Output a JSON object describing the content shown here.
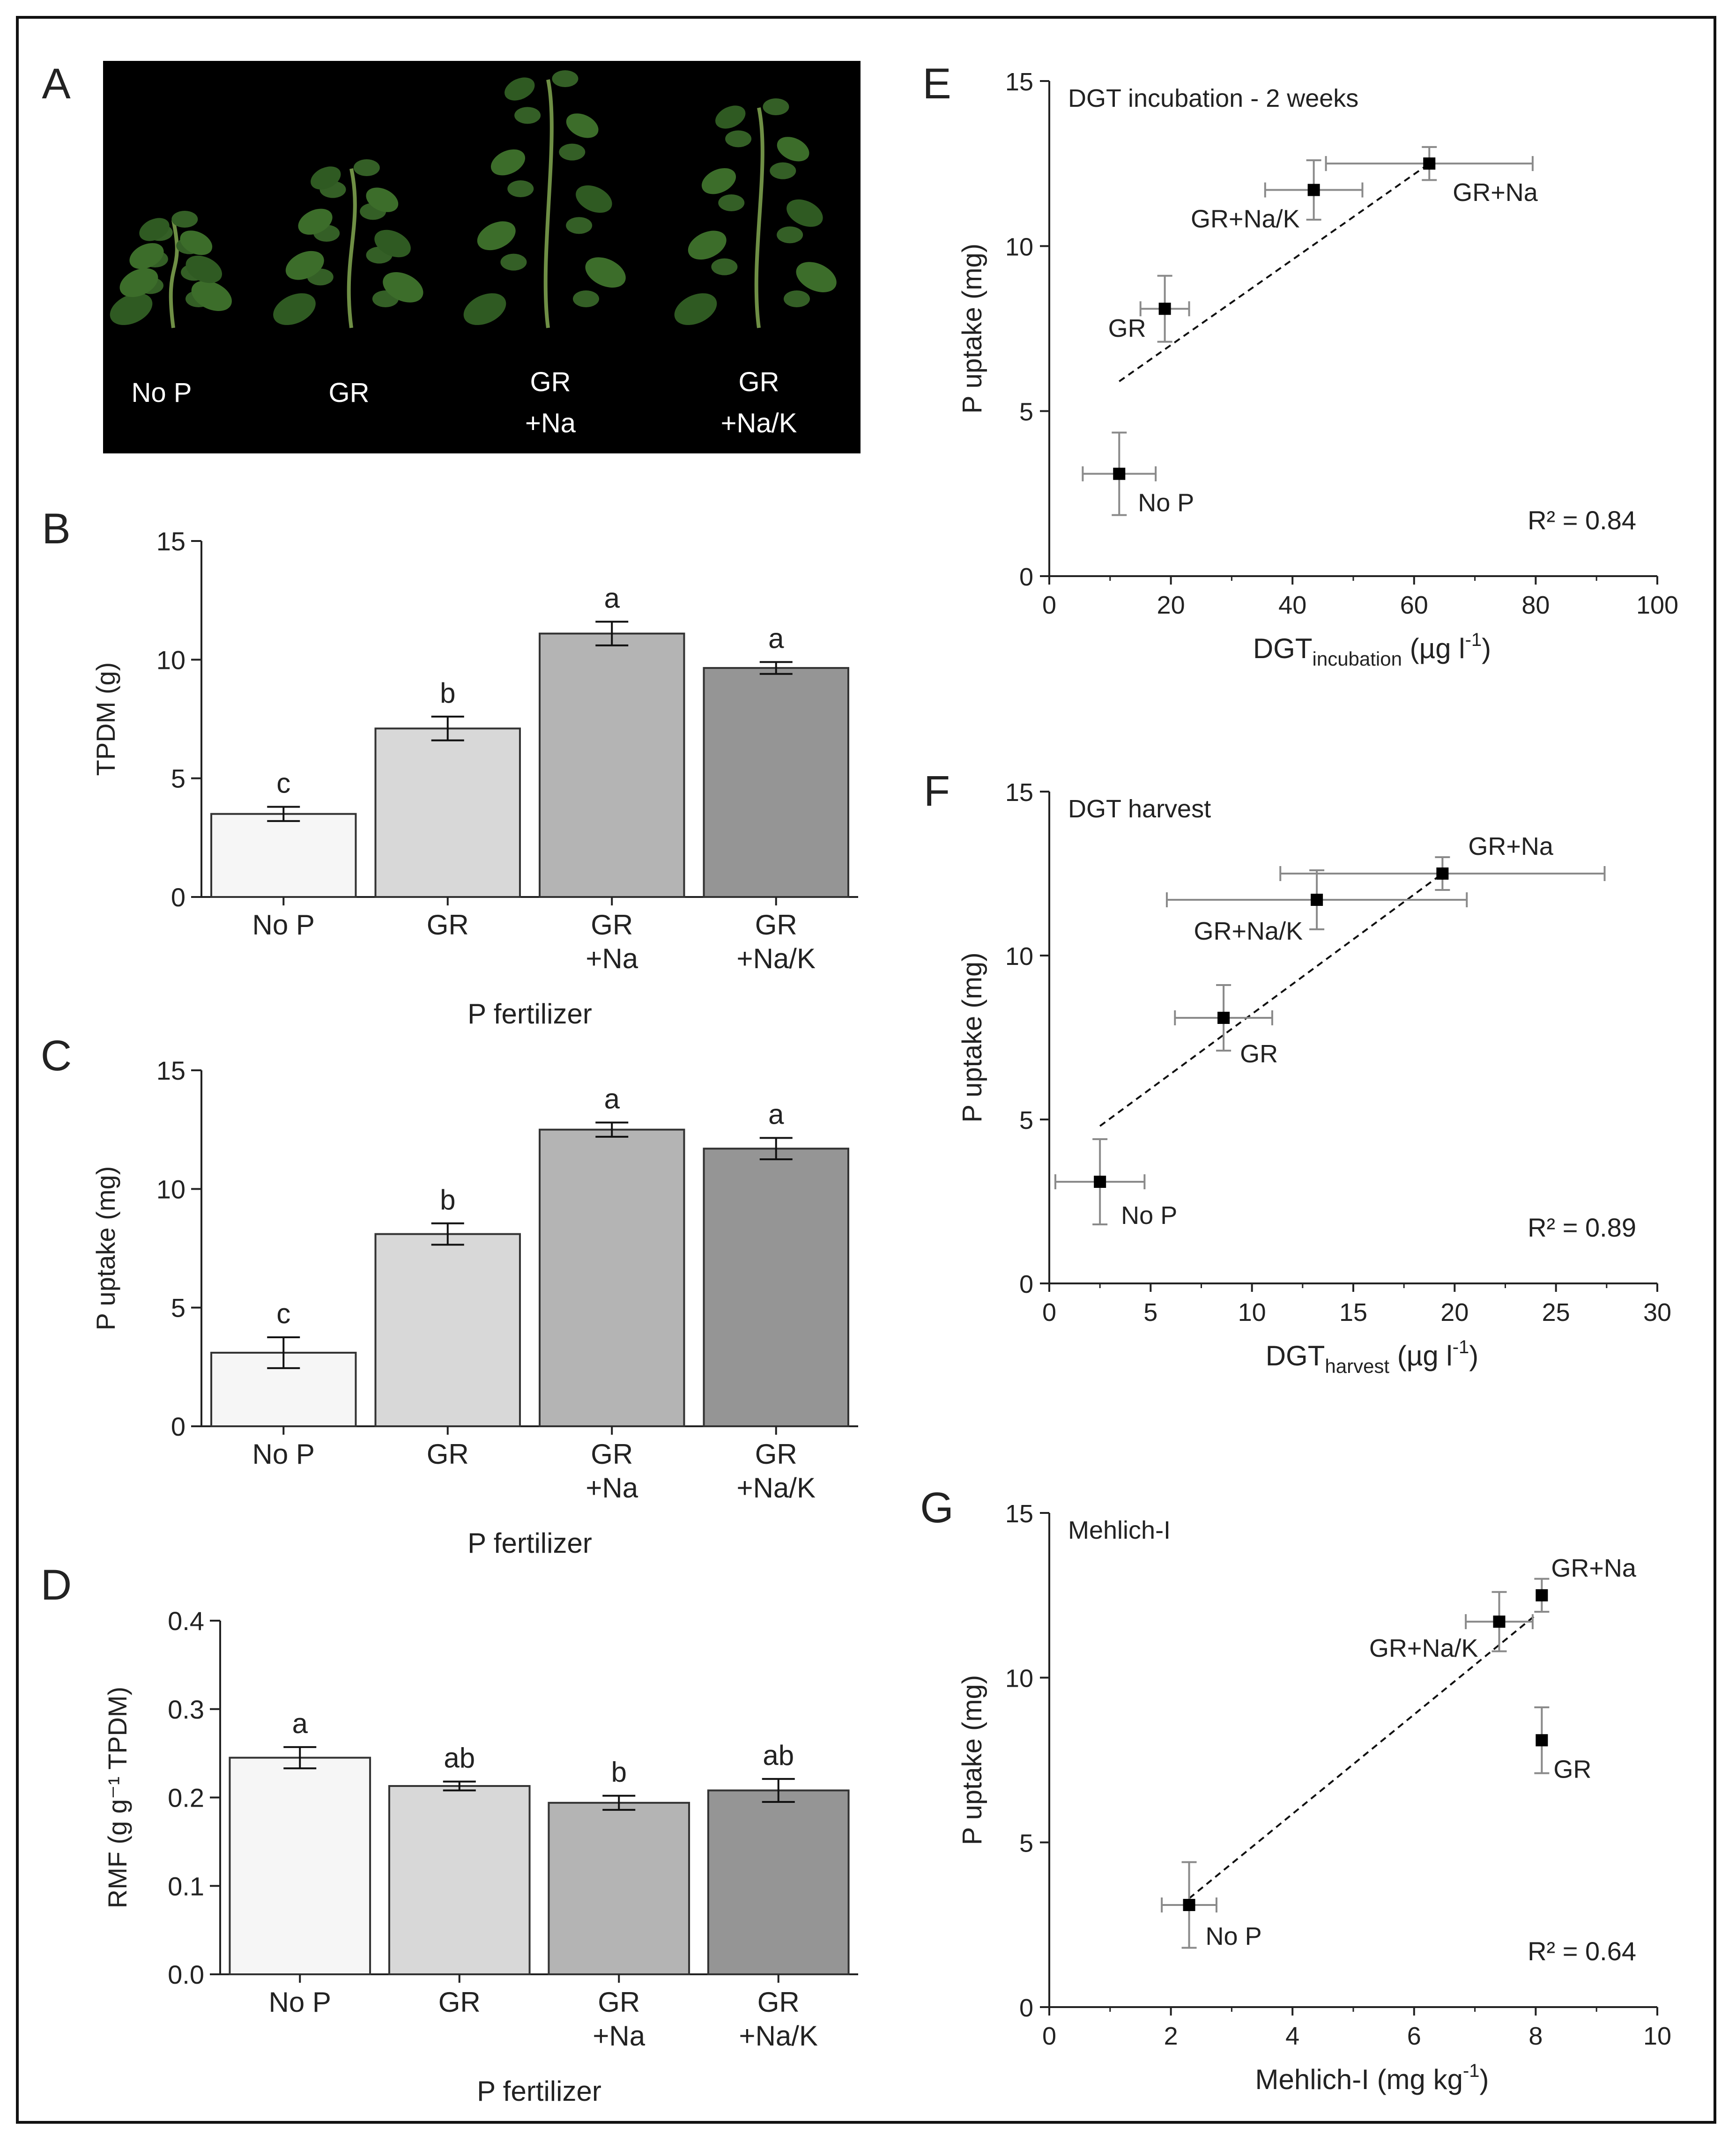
{
  "figure": {
    "panel_letters": [
      "A",
      "B",
      "C",
      "D",
      "E",
      "F",
      "G"
    ]
  },
  "photo": {
    "labels": [
      [
        "No P"
      ],
      [
        "GR"
      ],
      [
        "GR",
        "+Na"
      ],
      [
        "GR",
        "+Na/K"
      ]
    ]
  },
  "colors": {
    "bar_fills": [
      "#f6f6f6",
      "#d8d8d8",
      "#b4b4b4",
      "#959595"
    ],
    "ink": "#222222",
    "errorbar_scatter": "#8a8a8a"
  },
  "chart_data": [
    {
      "panel": "B",
      "type": "bar",
      "categories": [
        [
          "No P"
        ],
        [
          "GR"
        ],
        [
          "GR",
          "+Na"
        ],
        [
          "GR",
          "+Na/K"
        ]
      ],
      "values": [
        3.5,
        7.1,
        11.1,
        9.65
      ],
      "errors": [
        0.3,
        0.5,
        0.5,
        0.25
      ],
      "letters": [
        "c",
        "b",
        "a",
        "a"
      ],
      "xlabel": "P fertilizer",
      "ylabel": "TPDM (g)",
      "ylim": [
        0,
        15
      ],
      "yticks": [
        "0",
        "5",
        "10",
        "15"
      ],
      "ytick_values": [
        0,
        5,
        10,
        15
      ]
    },
    {
      "panel": "C",
      "type": "bar",
      "categories": [
        [
          "No P"
        ],
        [
          "GR"
        ],
        [
          "GR",
          "+Na"
        ],
        [
          "GR",
          "+Na/K"
        ]
      ],
      "values": [
        3.1,
        8.1,
        12.5,
        11.7
      ],
      "errors": [
        0.65,
        0.45,
        0.3,
        0.45
      ],
      "letters": [
        "c",
        "b",
        "a",
        "a"
      ],
      "xlabel": "P fertilizer",
      "ylabel": "P uptake (mg)",
      "ylim": [
        0,
        15
      ],
      "yticks": [
        "0",
        "5",
        "10",
        "15"
      ],
      "ytick_values": [
        0,
        5,
        10,
        15
      ]
    },
    {
      "panel": "D",
      "type": "bar",
      "categories": [
        [
          "No P"
        ],
        [
          "GR"
        ],
        [
          "GR",
          "+Na"
        ],
        [
          "GR",
          "+Na/K"
        ]
      ],
      "values": [
        0.245,
        0.213,
        0.194,
        0.208
      ],
      "errors": [
        0.012,
        0.005,
        0.008,
        0.013
      ],
      "letters": [
        "a",
        "ab",
        "b",
        "ab"
      ],
      "xlabel": "P fertilizer",
      "ylabel": "RMF (g g⁻¹ TPDM)",
      "ylim": [
        0,
        0.4
      ],
      "yticks": [
        "0.0",
        "0.1",
        "0.2",
        "0.3",
        "0.4"
      ],
      "ytick_values": [
        0,
        0.1,
        0.2,
        0.3,
        0.4
      ]
    },
    {
      "panel": "E",
      "type": "scatter",
      "title": "DGT incubation - 2 weeks",
      "xlabel_main": "DGT",
      "xlabel_sub": "incubation",
      "xlabel_unit": " (µg l",
      "xlabel_sup": "-1",
      "xlabel_end": ")",
      "ylabel": "P uptake (mg)",
      "xlim": [
        0,
        100
      ],
      "ylim": [
        0,
        15
      ],
      "xticks": [
        "0",
        "20",
        "40",
        "60",
        "80",
        "100"
      ],
      "xtick_values": [
        0,
        20,
        40,
        60,
        80,
        100
      ],
      "yticks": [
        "0",
        "5",
        "10",
        "15"
      ],
      "ytick_values": [
        0,
        5,
        10,
        15
      ],
      "points": [
        {
          "label": "No P",
          "x": 11.5,
          "y": 3.1,
          "xerr": 6,
          "yerr": 1.25
        },
        {
          "label": "GR",
          "x": 19,
          "y": 8.1,
          "xerr": 4,
          "yerr": 1
        },
        {
          "label": "GR+Na/K",
          "x": 43.5,
          "y": 11.7,
          "xerr": 8,
          "yerr": 0.9
        },
        {
          "label": "GR+Na",
          "x": 62.5,
          "y": 12.5,
          "xerr": 17,
          "yerr": 0.5
        }
      ],
      "fit_line": {
        "x": [
          11.5,
          62.5
        ],
        "y": [
          5.9,
          12.5
        ]
      },
      "r2_label": "R² = 0.84"
    },
    {
      "panel": "F",
      "type": "scatter",
      "title": "DGT harvest",
      "xlabel_main": "DGT",
      "xlabel_sub": "harvest",
      "xlabel_unit": " (µg l",
      "xlabel_sup": "-1",
      "xlabel_end": ")",
      "ylabel": "P uptake (mg)",
      "xlim": [
        0,
        30
      ],
      "ylim": [
        0,
        15
      ],
      "xticks": [
        "0",
        "5",
        "10",
        "15",
        "20",
        "25",
        "30"
      ],
      "xtick_values": [
        0,
        5,
        10,
        15,
        20,
        25,
        30
      ],
      "yticks": [
        "0",
        "5",
        "10",
        "15"
      ],
      "ytick_values": [
        0,
        5,
        10,
        15
      ],
      "points": [
        {
          "label": "No P",
          "x": 2.5,
          "y": 3.1,
          "xerr": 2.2,
          "yerr": 1.3
        },
        {
          "label": "GR",
          "x": 8.6,
          "y": 8.1,
          "xerr": 2.4,
          "yerr": 1
        },
        {
          "label": "GR+Na/K",
          "x": 13.2,
          "y": 11.7,
          "xerr": 7.4,
          "yerr": 0.9
        },
        {
          "label": "GR+Na",
          "x": 19.4,
          "y": 12.5,
          "xerr": 8,
          "yerr": 0.5
        }
      ],
      "fit_line": {
        "x": [
          2.5,
          19.4
        ],
        "y": [
          4.8,
          12.5
        ]
      },
      "r2_label": "R² = 0.89"
    },
    {
      "panel": "G",
      "type": "scatter",
      "title": "Mehlich-I",
      "xlabel_main": "Mehlich-I (mg kg",
      "xlabel_sub": "",
      "xlabel_unit": "",
      "xlabel_sup": "-1",
      "xlabel_end": ")",
      "ylabel": "P uptake (mg)",
      "xlim": [
        0,
        10
      ],
      "ylim": [
        0,
        15
      ],
      "xticks": [
        "0",
        "2",
        "4",
        "6",
        "8",
        "10"
      ],
      "xtick_values": [
        0,
        2,
        4,
        6,
        8,
        10
      ],
      "yticks": [
        "0",
        "5",
        "10",
        "15"
      ],
      "ytick_values": [
        0,
        5,
        10,
        15
      ],
      "points": [
        {
          "label": "No P",
          "x": 2.3,
          "y": 3.1,
          "xerr": 0.45,
          "yerr": 1.3
        },
        {
          "label": "GR",
          "x": 8.1,
          "y": 8.1,
          "xerr": 0,
          "yerr": 1
        },
        {
          "label": "GR+Na/K",
          "x": 7.4,
          "y": 11.7,
          "xerr": 0.55,
          "yerr": 0.9
        },
        {
          "label": "GR+Na",
          "x": 8.1,
          "y": 12.5,
          "xerr": 0,
          "yerr": 0.5
        }
      ],
      "fit_line": {
        "x": [
          2.3,
          8.0
        ],
        "y": [
          3.3,
          11.9
        ]
      },
      "r2_label": "R² = 0.64"
    }
  ]
}
